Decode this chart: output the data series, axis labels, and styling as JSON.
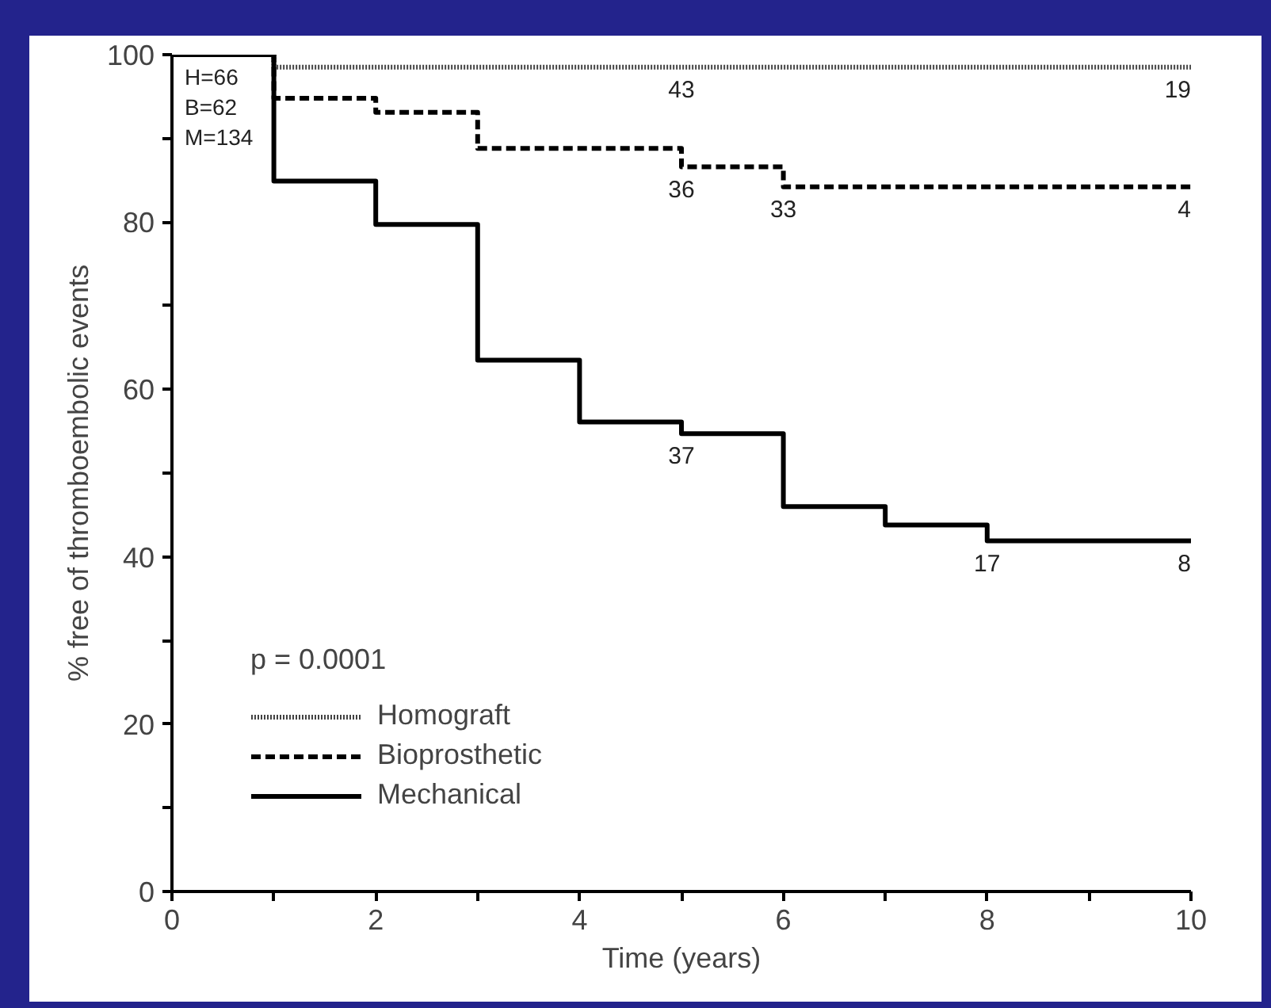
{
  "chart_data": {
    "type": "step",
    "xlabel": "Time (years)",
    "ylabel": "% free of thromboembolic events",
    "legend_title": "p = 0.0001",
    "xlim": [
      0,
      10
    ],
    "ylim": [
      0,
      100
    ],
    "xticks": [
      0,
      {
        "value": 1,
        "label": null
      },
      2,
      {
        "value": 3,
        "label": null
      },
      4,
      {
        "value": 5,
        "label": null
      },
      6,
      {
        "value": 7,
        "label": null
      },
      8,
      {
        "value": 9,
        "label": null
      },
      10
    ],
    "yticks": [
      0,
      {
        "value": 10,
        "label": null
      },
      20,
      {
        "value": 30,
        "label": null
      },
      40,
      {
        "value": 50,
        "label": null
      },
      60,
      {
        "value": 70,
        "label": null
      },
      80,
      {
        "value": 90,
        "label": null
      },
      100
    ],
    "grid": false,
    "legend": "bottom left",
    "marker": "none",
    "series": [
      {
        "name": "Homograft",
        "color": "#444444",
        "line_style": "dotted",
        "x": [
          0,
          1,
          10
        ],
        "values": [
          100,
          98.5,
          98.5
        ]
      },
      {
        "name": "Bioprosthetic",
        "color": "#000000",
        "line_style": "dashed",
        "x": [
          0,
          1,
          2,
          3,
          5,
          6,
          10
        ],
        "values": [
          100,
          94.8,
          93.1,
          88.8,
          86.6,
          84.2,
          84.2
        ]
      },
      {
        "name": "Mechanical",
        "color": "#000000",
        "line_style": "solid",
        "x": [
          0,
          1,
          2,
          3,
          4,
          5,
          6,
          7,
          8,
          10
        ],
        "values": [
          100,
          84.9,
          79.7,
          63.5,
          56.1,
          54.7,
          46.0,
          43.8,
          41.9,
          41.9
        ]
      }
    ],
    "annotations": [
      "H=66",
      "B=62",
      "M=134",
      {
        "text": "43",
        "x": 5,
        "y": 98.5
      },
      {
        "text": "19",
        "x": 10,
        "y": 98.5
      },
      {
        "text": "36",
        "x": 5,
        "y": 86.6
      },
      {
        "text": "33",
        "x": 6,
        "y": 84.2
      },
      {
        "text": "4",
        "x": 10,
        "y": 84.2
      },
      {
        "text": "37",
        "x": 5,
        "y": 54.7
      },
      {
        "text": "17",
        "x": 8,
        "y": 41.9
      },
      {
        "text": "8",
        "x": 10,
        "y": 41.9
      }
    ]
  }
}
